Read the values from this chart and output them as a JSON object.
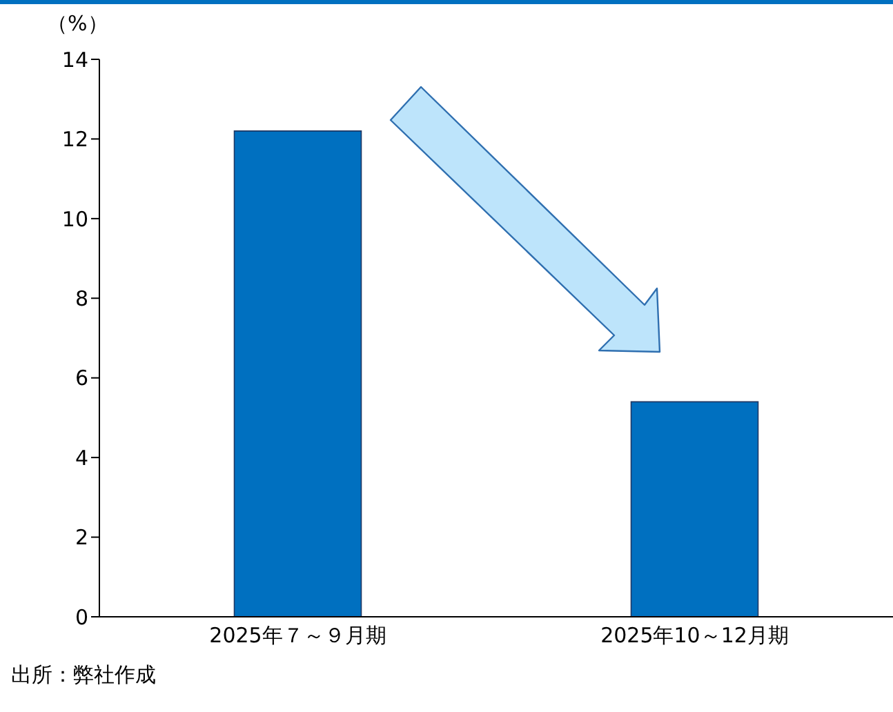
{
  "chart_data": {
    "type": "bar",
    "ylabel": "（%）",
    "categories": [
      "2025年７～９月期",
      "2025年10～12月期"
    ],
    "values": [
      12.2,
      5.4
    ],
    "color": "#0070c0",
    "ylim": [
      0,
      14
    ],
    "yticks": [
      0,
      2,
      4,
      6,
      8,
      10,
      12,
      14
    ],
    "grid": false,
    "legend": false,
    "annotations": [
      "出所：弊社作成"
    ]
  }
}
